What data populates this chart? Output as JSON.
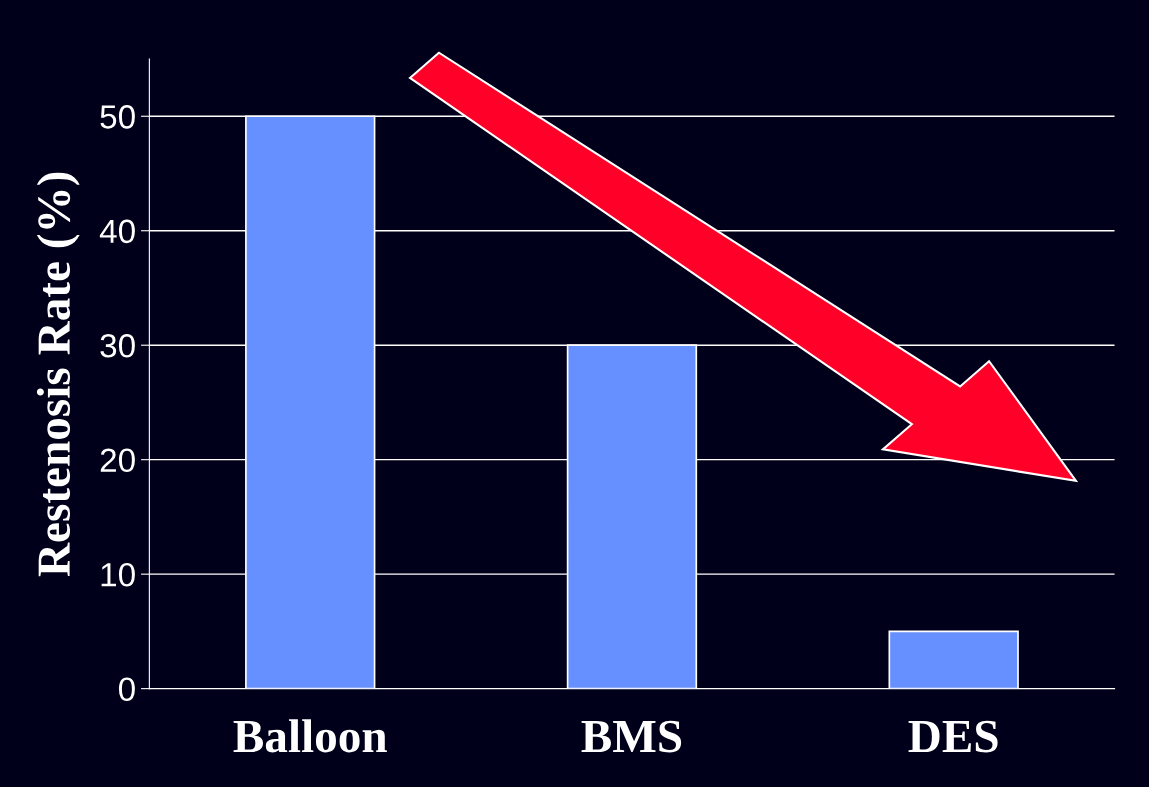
{
  "chart_data": {
    "type": "bar",
    "ylabel": "Restenosis Rate (%)",
    "categories": [
      "Balloon",
      "BMS",
      "DES"
    ],
    "values": [
      50,
      30,
      5
    ],
    "color": "#6690ff",
    "ylim": [
      0,
      55
    ],
    "yticks": [
      0,
      10,
      20,
      30,
      40,
      50
    ],
    "grid": "y"
  }
}
